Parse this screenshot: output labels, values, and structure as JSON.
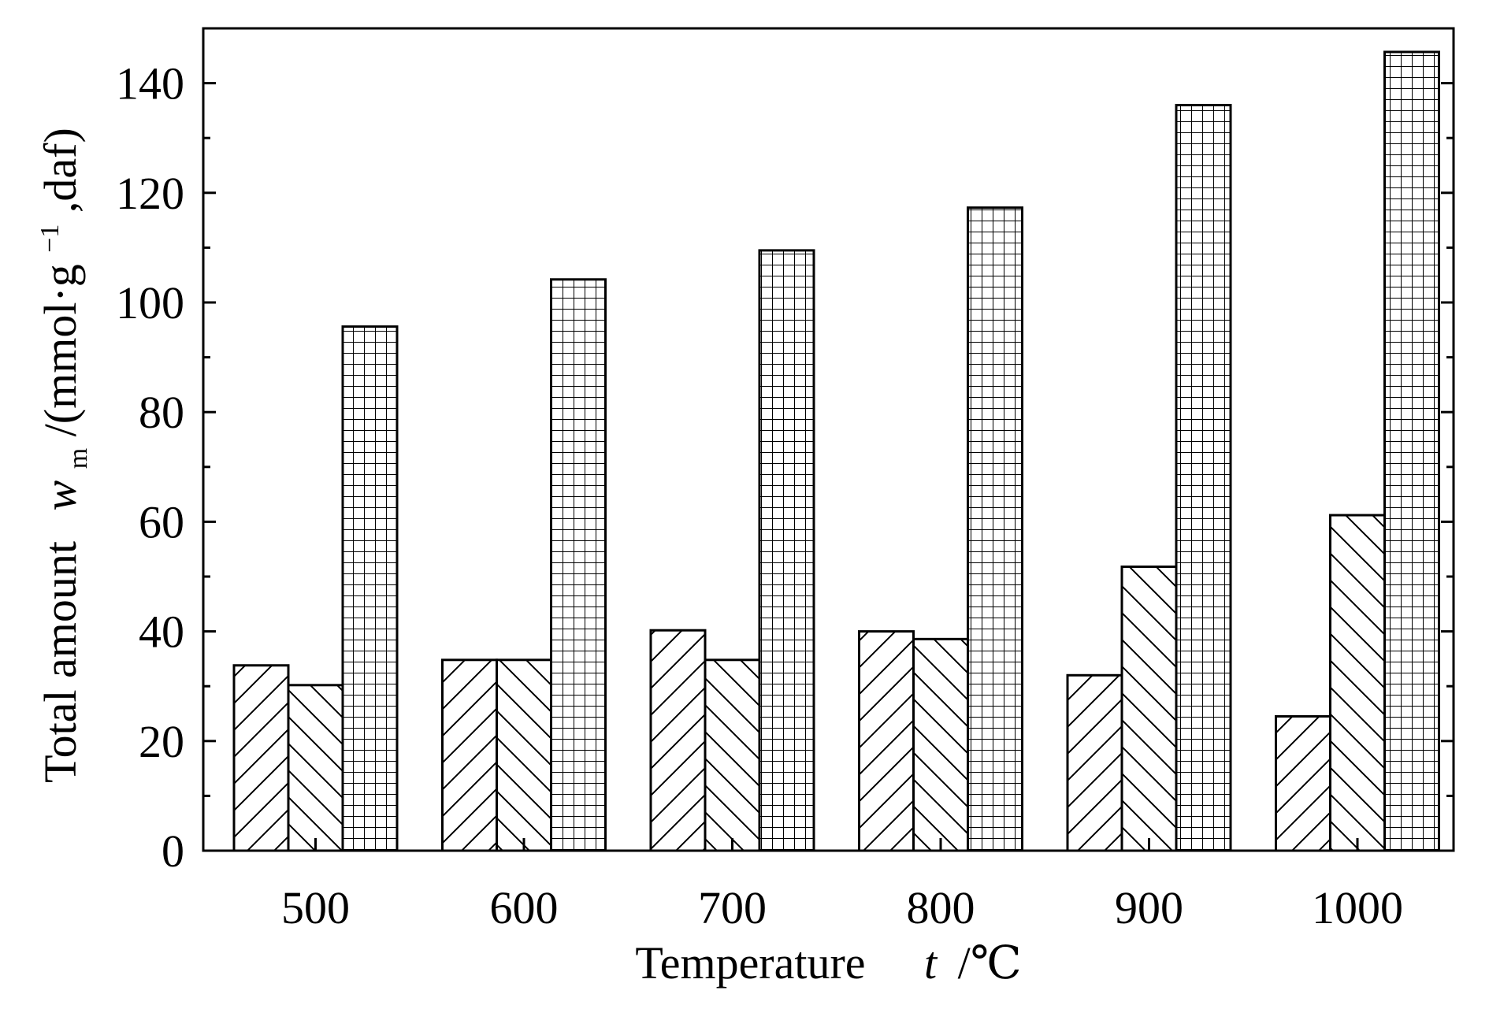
{
  "chart_data": {
    "type": "bar",
    "title": "",
    "categories": [
      "500",
      "600",
      "700",
      "800",
      "900",
      "1000"
    ],
    "series": [
      {
        "pattern": "diagonal-forward",
        "values": [
          33.8,
          34.8,
          40.2,
          40.0,
          32.0,
          24.5
        ]
      },
      {
        "pattern": "diagonal-backward",
        "values": [
          30.2,
          34.8,
          34.8,
          38.6,
          51.8,
          61.2
        ]
      },
      {
        "pattern": "grid",
        "values": [
          95.6,
          104.2,
          109.5,
          117.3,
          136.0,
          145.7
        ]
      }
    ],
    "xlabel": {
      "main": "Temperature",
      "var": "t",
      "unit": "/℃"
    },
    "ylabel": {
      "main": "Total amount",
      "var": "w",
      "sub": "m",
      "unit_open": "/(mmol·g",
      "sup": "−1",
      "unit_close": ",daf)"
    },
    "yticks": [
      0,
      20,
      40,
      60,
      80,
      100,
      120,
      140
    ],
    "ylim": [
      0,
      150
    ],
    "grid": false,
    "legend": "none",
    "colors": {
      "line": "#000000",
      "fill": "#ffffff"
    }
  }
}
